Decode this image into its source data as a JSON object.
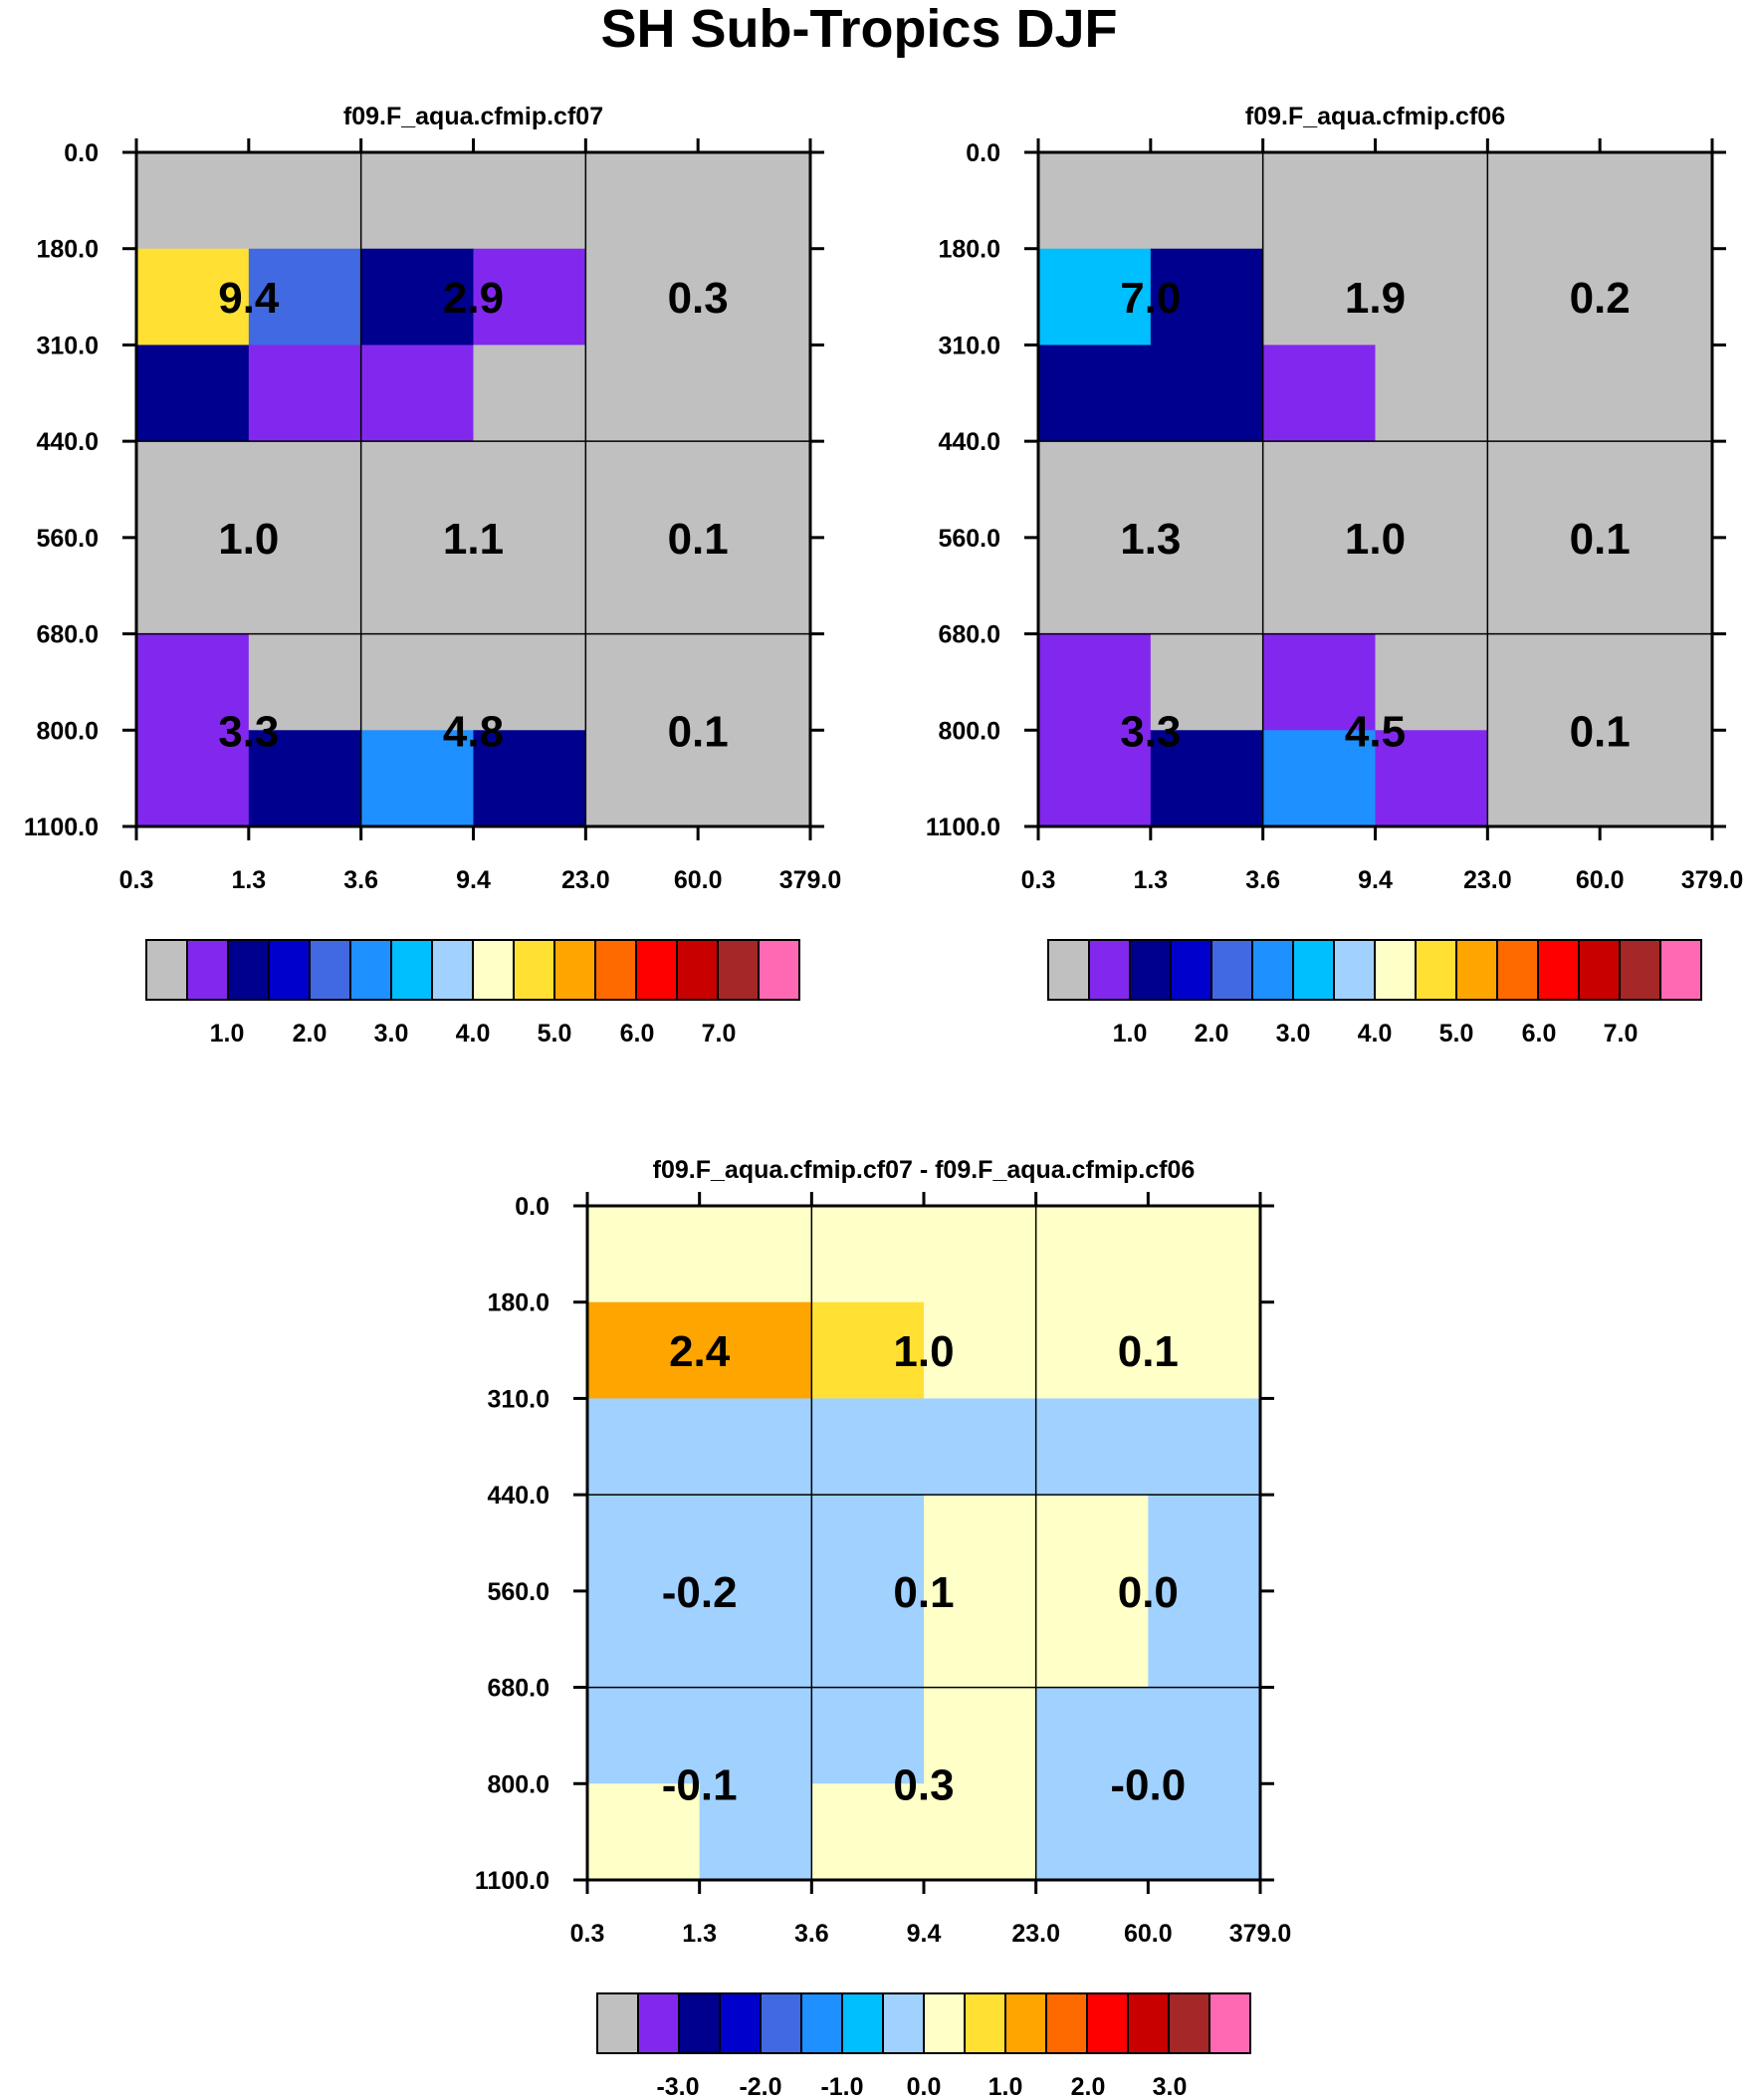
{
  "title": "SH Sub-Tropics DJF",
  "palette": {
    "neutral": "#c0c0c0",
    "colors": [
      "#c0c0c0",
      "#8228ee",
      "#00008f",
      "#0000cd",
      "#4169e1",
      "#1e90ff",
      "#00bfff",
      "#a0d1ff",
      "#ffffc8",
      "#ffe033",
      "#ffa500",
      "#ff6a00",
      "#ff0000",
      "#c80000",
      "#a52727",
      "#ff69b4"
    ]
  },
  "chart_data": [
    {
      "type": "heatmap",
      "title": "f09.F_aqua.cfmip.cf07",
      "x_ticks": [
        "0.3",
        "1.3",
        "3.6",
        "9.4",
        "23.0",
        "60.0",
        "379.0"
      ],
      "y_ticks": [
        "0.0",
        "180.0",
        "310.0",
        "440.0",
        "560.0",
        "680.0",
        "800.0",
        "1100.0"
      ],
      "cells": [
        [
          0,
          0,
          0,
          0,
          0,
          0
        ],
        [
          9,
          4,
          2,
          1,
          0,
          0
        ],
        [
          2,
          1,
          1,
          0,
          0,
          0
        ],
        [
          0,
          0,
          0,
          0,
          0,
          0
        ],
        [
          0,
          0,
          0,
          0,
          0,
          0
        ],
        [
          1,
          0,
          0,
          0,
          0,
          0
        ],
        [
          1,
          2,
          5,
          2,
          0,
          0
        ]
      ],
      "box_values": [
        [
          "9.4",
          "2.9",
          "0.3"
        ],
        [
          "1.0",
          "1.1",
          "0.1"
        ],
        [
          "3.3",
          "4.8",
          "0.1"
        ]
      ],
      "colorbar_labels": [
        "1.0",
        "2.0",
        "3.0",
        "4.0",
        "5.0",
        "6.0",
        "7.0"
      ]
    },
    {
      "type": "heatmap",
      "title": "f09.F_aqua.cfmip.cf06",
      "x_ticks": [
        "0.3",
        "1.3",
        "3.6",
        "9.4",
        "23.0",
        "60.0",
        "379.0"
      ],
      "y_ticks": [
        "0.0",
        "180.0",
        "310.0",
        "440.0",
        "560.0",
        "680.0",
        "800.0",
        "1100.0"
      ],
      "cells": [
        [
          0,
          0,
          0,
          0,
          0,
          0
        ],
        [
          6,
          2,
          0,
          0,
          0,
          0
        ],
        [
          2,
          2,
          1,
          0,
          0,
          0
        ],
        [
          0,
          0,
          0,
          0,
          0,
          0
        ],
        [
          0,
          0,
          0,
          0,
          0,
          0
        ],
        [
          1,
          0,
          1,
          0,
          0,
          0
        ],
        [
          1,
          2,
          5,
          1,
          0,
          0
        ]
      ],
      "box_values": [
        [
          "7.0",
          "1.9",
          "0.2"
        ],
        [
          "1.3",
          "1.0",
          "0.1"
        ],
        [
          "3.3",
          "4.5",
          "0.1"
        ]
      ],
      "colorbar_labels": [
        "1.0",
        "2.0",
        "3.0",
        "4.0",
        "5.0",
        "6.0",
        "7.0"
      ]
    },
    {
      "type": "heatmap",
      "title": "f09.F_aqua.cfmip.cf07 - f09.F_aqua.cfmip.cf06",
      "x_ticks": [
        "0.3",
        "1.3",
        "3.6",
        "9.4",
        "23.0",
        "60.0",
        "379.0"
      ],
      "y_ticks": [
        "0.0",
        "180.0",
        "310.0",
        "440.0",
        "560.0",
        "680.0",
        "800.0",
        "1100.0"
      ],
      "cells": [
        [
          8,
          8,
          8,
          8,
          8,
          8
        ],
        [
          10,
          10,
          9,
          8,
          8,
          8
        ],
        [
          7,
          7,
          7,
          7,
          7,
          7
        ],
        [
          7,
          7,
          7,
          8,
          8,
          7
        ],
        [
          7,
          7,
          7,
          8,
          8,
          7
        ],
        [
          7,
          7,
          7,
          8,
          7,
          7
        ],
        [
          8,
          7,
          8,
          8,
          7,
          7
        ]
      ],
      "box_values": [
        [
          "2.4",
          "1.0",
          "0.1"
        ],
        [
          "-0.2",
          "0.1",
          "0.0"
        ],
        [
          "-0.1",
          "0.3",
          "-0.0"
        ]
      ],
      "colorbar_labels": [
        "-3.0",
        "-2.0",
        "-1.0",
        "0.0",
        "1.0",
        "2.0",
        "3.0"
      ]
    }
  ]
}
